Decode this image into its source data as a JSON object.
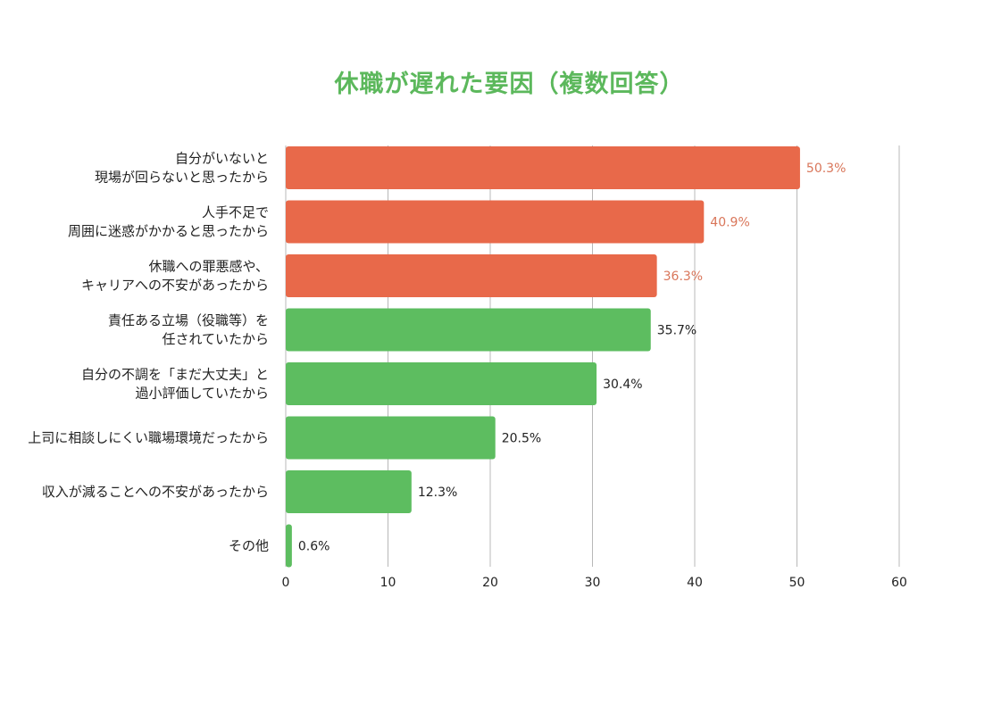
{
  "chart_data": {
    "type": "bar",
    "orientation": "horizontal",
    "title": "休職が遅れた要因（複数回答）",
    "categories": [
      [
        "自分がいないと",
        "現場が回らないと思ったから"
      ],
      [
        "人手不足で",
        "周囲に迷惑がかかると思ったから"
      ],
      [
        "休職への罪悪感や、",
        "キャリアへの不安があったから"
      ],
      [
        "責任ある立場（役職等）を",
        "任されていたから"
      ],
      [
        "自分の不調を「まだ大丈夫」と",
        "過小評価していたから"
      ],
      [
        "上司に相談しにくい職場環境だったから"
      ],
      [
        "収入が減ることへの不安があったから"
      ],
      [
        "その他"
      ]
    ],
    "values": [
      50.3,
      40.9,
      36.3,
      35.7,
      30.4,
      20.5,
      12.3,
      0.6
    ],
    "value_labels": [
      "50.3%",
      "40.9%",
      "36.3%",
      "35.7%",
      "30.4%",
      "20.5%",
      "12.3%",
      "0.6%"
    ],
    "highlight": [
      true,
      true,
      true,
      false,
      false,
      false,
      false,
      false
    ],
    "xlim": [
      0,
      60
    ],
    "xticks": [
      0,
      10,
      20,
      30,
      40,
      50,
      60
    ],
    "grid": "vertical",
    "colors": {
      "highlight_bar": "#e8694a",
      "normal_bar": "#5dbd60",
      "highlight_label": "#d9765a",
      "normal_label": "#222222",
      "title": "#5cb85c",
      "grid": "#b8b8b8"
    }
  }
}
